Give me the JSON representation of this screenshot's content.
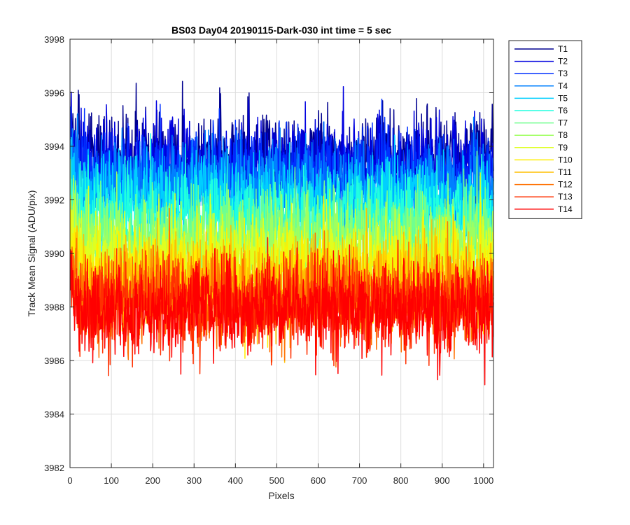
{
  "chart_data": {
    "type": "line",
    "title": "BS03 Day04 20190115-Dark-030 int time = 5 sec",
    "xlabel": "Pixels",
    "ylabel": "Track Mean Signal (ADU/pix)",
    "xlim": [
      0,
      1024
    ],
    "ylim": [
      3982,
      3998
    ],
    "x_ticks": [
      0,
      100,
      200,
      300,
      400,
      500,
      600,
      700,
      800,
      900,
      1000
    ],
    "y_ticks": [
      3982,
      3984,
      3986,
      3988,
      3990,
      3992,
      3994,
      3996,
      3998
    ],
    "grid": true,
    "legend_position": "outside-top-right",
    "x_range_of_points": [
      1,
      1024
    ],
    "series": [
      {
        "name": "T1",
        "color": "#00008f",
        "mean": 3993.6,
        "noise": 0.85
      },
      {
        "name": "T2",
        "color": "#0000df",
        "mean": 3993.3,
        "noise": 0.85
      },
      {
        "name": "T3",
        "color": "#0030ff",
        "mean": 3992.9,
        "noise": 0.85
      },
      {
        "name": "T4",
        "color": "#0080ff",
        "mean": 3992.4,
        "noise": 0.85
      },
      {
        "name": "T5",
        "color": "#00cfff",
        "mean": 3991.9,
        "noise": 0.85
      },
      {
        "name": "T6",
        "color": "#20ffdf",
        "mean": 3991.3,
        "noise": 0.85
      },
      {
        "name": "T7",
        "color": "#70ff8f",
        "mean": 3990.7,
        "noise": 0.85
      },
      {
        "name": "T8",
        "color": "#9fff60",
        "mean": 3990.2,
        "noise": 0.85
      },
      {
        "name": "T9",
        "color": "#dfff20",
        "mean": 3989.7,
        "noise": 0.85
      },
      {
        "name": "T10",
        "color": "#ffef00",
        "mean": 3989.2,
        "noise": 0.85
      },
      {
        "name": "T11",
        "color": "#ffbf00",
        "mean": 3988.8,
        "noise": 0.85
      },
      {
        "name": "T12",
        "color": "#ff7000",
        "mean": 3988.4,
        "noise": 0.85
      },
      {
        "name": "T13",
        "color": "#ff3000",
        "mean": 3988.1,
        "noise": 0.85
      },
      {
        "name": "T14",
        "color": "#ff0000",
        "mean": 3987.9,
        "noise": 0.85
      }
    ]
  }
}
